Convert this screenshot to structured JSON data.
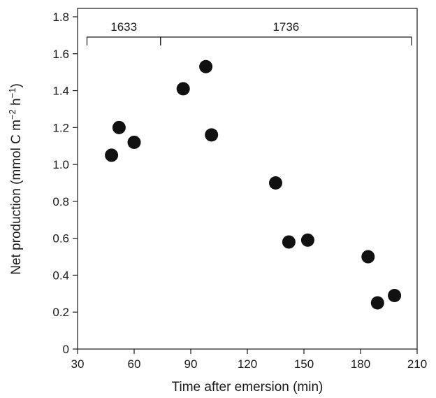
{
  "chart_data": {
    "type": "scatter",
    "xlabel": "Time after emersion (min)",
    "ylabel": {
      "prefix": "Net  production (mmol C m",
      "sup1": "−2",
      "middle": " h",
      "sup2": "−1",
      "suffix": ")"
    },
    "xlim": [
      30,
      210
    ],
    "ylim": [
      0,
      1.8
    ],
    "xticks": [
      {
        "value": 30,
        "label": "30"
      },
      {
        "value": 60,
        "label": "60"
      },
      {
        "value": 90,
        "label": "90"
      },
      {
        "value": 120,
        "label": "120"
      },
      {
        "value": 150,
        "label": "150"
      },
      {
        "value": 180,
        "label": "180"
      },
      {
        "value": 210,
        "label": "210"
      }
    ],
    "yticks": [
      {
        "value": 0,
        "label": "0"
      },
      {
        "value": 0.2,
        "label": "0.2"
      },
      {
        "value": 0.4,
        "label": "0.4"
      },
      {
        "value": 0.6,
        "label": "0.6"
      },
      {
        "value": 0.8,
        "label": "0.8"
      },
      {
        "value": 1.0,
        "label": "1.0"
      },
      {
        "value": 1.2,
        "label": "1.2"
      },
      {
        "value": 1.4,
        "label": "1.4"
      },
      {
        "value": 1.6,
        "label": "1.6"
      },
      {
        "value": 1.8,
        "label": "1.8"
      }
    ],
    "points": [
      {
        "x": 48,
        "y": 1.05
      },
      {
        "x": 52,
        "y": 1.2
      },
      {
        "x": 60,
        "y": 1.12
      },
      {
        "x": 86,
        "y": 1.41
      },
      {
        "x": 98,
        "y": 1.53
      },
      {
        "x": 101,
        "y": 1.16
      },
      {
        "x": 135,
        "y": 0.9
      },
      {
        "x": 142,
        "y": 0.58
      },
      {
        "x": 152,
        "y": 0.59
      },
      {
        "x": 184,
        "y": 0.5
      },
      {
        "x": 189,
        "y": 0.25
      },
      {
        "x": 198,
        "y": 0.29
      }
    ],
    "brackets": [
      {
        "label": "1633",
        "x_start": 35,
        "x_end": 74,
        "y": 1.69
      },
      {
        "label": "1736",
        "x_start": 74,
        "x_end": 207,
        "y": 1.69
      }
    ],
    "grid": false,
    "colors": {
      "points": "#111111",
      "axes": "#1a1a1a"
    }
  }
}
